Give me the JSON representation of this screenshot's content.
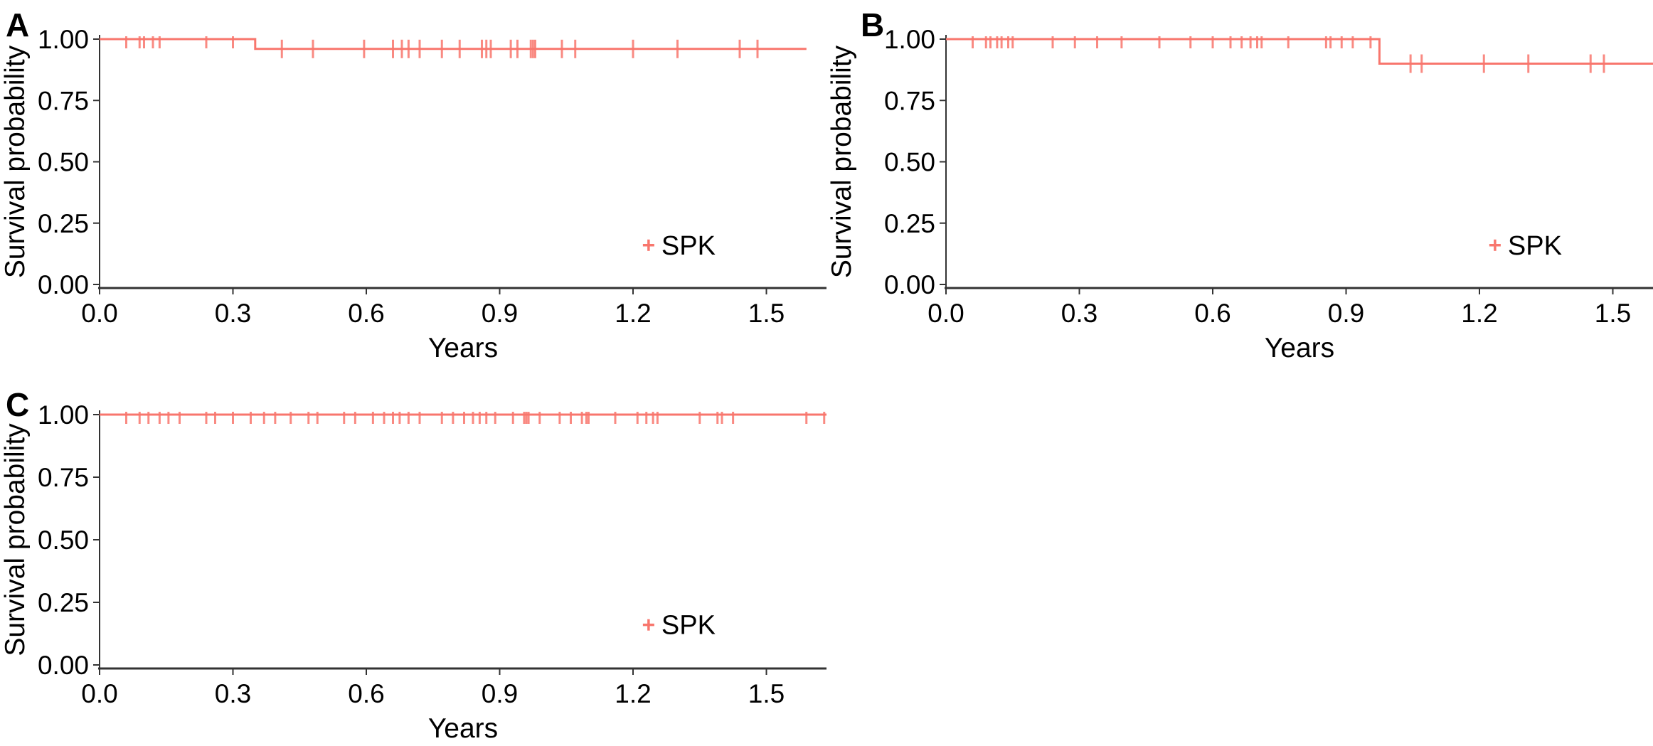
{
  "figure": {
    "description": "Three Kaplan-Meier survival curve panels",
    "background": "#ffffff"
  },
  "colors": {
    "curve": "#f8766d",
    "axis": "#333333",
    "text": "#000000"
  },
  "chart_data": [
    {
      "type": "line",
      "subtype": "kaplan-meier-step",
      "panel_label": "A",
      "title": "",
      "xlabel": "Years",
      "ylabel": "Survival probability",
      "xlim": [
        0,
        1.63
      ],
      "ylim": [
        0,
        1.05
      ],
      "grid": false,
      "xticks": {
        "values": [
          0,
          0.3,
          0.6,
          0.9,
          1.2,
          1.5
        ],
        "labels": [
          "0.0",
          "0.3",
          "0.6",
          "0.9",
          "1.2",
          "1.5"
        ]
      },
      "yticks": {
        "values": [
          0,
          0.25,
          0.5,
          0.75,
          1.0
        ],
        "labels": [
          "0.00",
          "0.25",
          "0.50",
          "0.75",
          "1.00"
        ]
      },
      "series": [
        {
          "name": "SPK",
          "color": "#f8766d",
          "steps": [
            [
              0,
              1.0
            ],
            [
              0.35,
              1.0
            ],
            [
              0.35,
              0.96
            ],
            [
              1.59,
              0.96
            ]
          ],
          "censors": [
            [
              0.06,
              1.0
            ],
            [
              0.09,
              1.0
            ],
            [
              0.1,
              1.0
            ],
            [
              0.12,
              1.0
            ],
            [
              0.135,
              1.0
            ],
            [
              0.24,
              1.0
            ],
            [
              0.3,
              1.0
            ],
            [
              0.41,
              0.96
            ],
            [
              0.48,
              0.96
            ],
            [
              0.595,
              0.96
            ],
            [
              0.66,
              0.96
            ],
            [
              0.68,
              0.96
            ],
            [
              0.695,
              0.96
            ],
            [
              0.72,
              0.96
            ],
            [
              0.77,
              0.96
            ],
            [
              0.81,
              0.96
            ],
            [
              0.86,
              0.96
            ],
            [
              0.87,
              0.96
            ],
            [
              0.88,
              0.96
            ],
            [
              0.925,
              0.96
            ],
            [
              0.94,
              0.96
            ],
            [
              0.97,
              0.96
            ],
            [
              0.975,
              0.96
            ],
            [
              0.98,
              0.96
            ],
            [
              1.04,
              0.96
            ],
            [
              1.07,
              0.96
            ],
            [
              1.2,
              0.96
            ],
            [
              1.3,
              0.96
            ],
            [
              1.44,
              0.96
            ],
            [
              1.48,
              0.96
            ]
          ]
        }
      ],
      "legend": {
        "marker": "plus",
        "label": "SPK",
        "x": 1.235,
        "y": 0.16,
        "position": "inside-bottom-right"
      }
    },
    {
      "type": "line",
      "subtype": "kaplan-meier-step",
      "panel_label": "B",
      "title": "",
      "xlabel": "Years",
      "ylabel": "Survival probability",
      "xlim": [
        0,
        1.6
      ],
      "ylim": [
        0,
        1.05
      ],
      "grid": false,
      "xticks": {
        "values": [
          0,
          0.3,
          0.6,
          0.9,
          1.2,
          1.5
        ],
        "labels": [
          "0.0",
          "0.3",
          "0.6",
          "0.9",
          "1.2",
          "1.5"
        ]
      },
      "yticks": {
        "values": [
          0,
          0.25,
          0.5,
          0.75,
          1.0
        ],
        "labels": [
          "0.00",
          "0.25",
          "0.50",
          "0.75",
          "1.00"
        ]
      },
      "series": [
        {
          "name": "SPK",
          "color": "#f8766d",
          "steps": [
            [
              0,
              1.0
            ],
            [
              0.975,
              1.0
            ],
            [
              0.975,
              0.9
            ],
            [
              1.6,
              0.9
            ]
          ],
          "censors": [
            [
              0.06,
              1.0
            ],
            [
              0.09,
              1.0
            ],
            [
              0.1,
              1.0
            ],
            [
              0.115,
              1.0
            ],
            [
              0.125,
              1.0
            ],
            [
              0.14,
              1.0
            ],
            [
              0.15,
              1.0
            ],
            [
              0.24,
              1.0
            ],
            [
              0.29,
              1.0
            ],
            [
              0.34,
              1.0
            ],
            [
              0.395,
              1.0
            ],
            [
              0.48,
              1.0
            ],
            [
              0.55,
              1.0
            ],
            [
              0.6,
              1.0
            ],
            [
              0.64,
              1.0
            ],
            [
              0.665,
              1.0
            ],
            [
              0.685,
              1.0
            ],
            [
              0.7,
              1.0
            ],
            [
              0.71,
              1.0
            ],
            [
              0.77,
              1.0
            ],
            [
              0.855,
              1.0
            ],
            [
              0.865,
              1.0
            ],
            [
              0.89,
              1.0
            ],
            [
              0.915,
              1.0
            ],
            [
              0.955,
              1.0
            ],
            [
              1.045,
              0.9
            ],
            [
              1.07,
              0.9
            ],
            [
              1.21,
              0.9
            ],
            [
              1.31,
              0.9
            ],
            [
              1.45,
              0.9
            ],
            [
              1.48,
              0.9
            ]
          ]
        }
      ],
      "legend": {
        "marker": "plus",
        "label": "SPK",
        "x": 1.235,
        "y": 0.16,
        "position": "inside-bottom-right"
      }
    },
    {
      "type": "line",
      "subtype": "kaplan-meier-step",
      "panel_label": "C",
      "title": "",
      "xlabel": "Years",
      "ylabel": "Survival probability",
      "xlim": [
        0,
        1.65
      ],
      "ylim": [
        0,
        1.05
      ],
      "grid": false,
      "xticks": {
        "values": [
          0,
          0.3,
          0.6,
          0.9,
          1.2,
          1.5
        ],
        "labels": [
          "0.0",
          "0.3",
          "0.6",
          "0.9",
          "1.2",
          "1.5"
        ]
      },
      "yticks": {
        "values": [
          0,
          0.25,
          0.5,
          0.75,
          1.0
        ],
        "labels": [
          "0.00",
          "0.25",
          "0.50",
          "0.75",
          "1.00"
        ]
      },
      "series": [
        {
          "name": "SPK",
          "color": "#f8766d",
          "steps": [
            [
              0,
              1.0
            ],
            [
              1.65,
              1.0
            ]
          ],
          "censors": [
            [
              0.06,
              1.0
            ],
            [
              0.09,
              1.0
            ],
            [
              0.11,
              1.0
            ],
            [
              0.135,
              1.0
            ],
            [
              0.155,
              1.0
            ],
            [
              0.18,
              1.0
            ],
            [
              0.24,
              1.0
            ],
            [
              0.26,
              1.0
            ],
            [
              0.3,
              1.0
            ],
            [
              0.34,
              1.0
            ],
            [
              0.37,
              1.0
            ],
            [
              0.395,
              1.0
            ],
            [
              0.43,
              1.0
            ],
            [
              0.47,
              1.0
            ],
            [
              0.49,
              1.0
            ],
            [
              0.55,
              1.0
            ],
            [
              0.575,
              1.0
            ],
            [
              0.615,
              1.0
            ],
            [
              0.64,
              1.0
            ],
            [
              0.66,
              1.0
            ],
            [
              0.675,
              1.0
            ],
            [
              0.695,
              1.0
            ],
            [
              0.72,
              1.0
            ],
            [
              0.77,
              1.0
            ],
            [
              0.795,
              1.0
            ],
            [
              0.82,
              1.0
            ],
            [
              0.84,
              1.0
            ],
            [
              0.855,
              1.0
            ],
            [
              0.87,
              1.0
            ],
            [
              0.89,
              1.0
            ],
            [
              0.93,
              1.0
            ],
            [
              0.955,
              1.0
            ],
            [
              0.96,
              1.0
            ],
            [
              0.965,
              1.0
            ],
            [
              0.99,
              1.0
            ],
            [
              1.035,
              1.0
            ],
            [
              1.06,
              1.0
            ],
            [
              1.085,
              1.0
            ],
            [
              1.095,
              1.0
            ],
            [
              1.1,
              1.0
            ],
            [
              1.16,
              1.0
            ],
            [
              1.21,
              1.0
            ],
            [
              1.23,
              1.0
            ],
            [
              1.245,
              1.0
            ],
            [
              1.255,
              1.0
            ],
            [
              1.35,
              1.0
            ],
            [
              1.39,
              1.0
            ],
            [
              1.4,
              1.0
            ],
            [
              1.425,
              1.0
            ],
            [
              1.59,
              1.0
            ],
            [
              1.63,
              1.0
            ]
          ]
        }
      ],
      "legend": {
        "marker": "plus",
        "label": "SPK",
        "x": 1.235,
        "y": 0.16,
        "position": "inside-bottom-right"
      }
    }
  ]
}
